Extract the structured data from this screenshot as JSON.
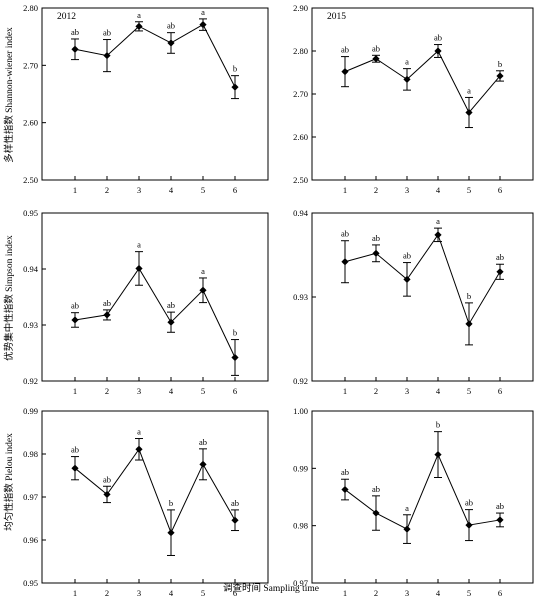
{
  "figure": {
    "x_axis_label": "调查时间 Sampling time",
    "y_axis_labels": [
      "多样性指数 Shannon-wiener index",
      "优势集中性指数 Simpson index",
      "均匀性指数 Pielou index"
    ]
  },
  "chart_data": [
    {
      "type": "line",
      "row": 0,
      "col": 0,
      "year_label": "2012",
      "x": [
        1,
        2,
        3,
        4,
        5,
        6
      ],
      "x_tick_labels": [
        "1",
        "2",
        "3",
        "4",
        "5",
        "6"
      ],
      "values": [
        2.728,
        2.717,
        2.768,
        2.739,
        2.771,
        2.662
      ],
      "errors": [
        0.018,
        0.028,
        0.008,
        0.018,
        0.01,
        0.02
      ],
      "significance": [
        "ab",
        "ab",
        "a",
        "ab",
        "a",
        "b"
      ],
      "ylim": [
        2.5,
        2.8
      ],
      "y_ticks": [
        2.5,
        2.6,
        2.7,
        2.8
      ],
      "y_tick_labels": [
        "2.50",
        "2.60",
        "2.70",
        "2.80"
      ]
    },
    {
      "type": "line",
      "row": 0,
      "col": 1,
      "year_label": "2015",
      "x": [
        1,
        2,
        3,
        4,
        5,
        6
      ],
      "x_tick_labels": [
        "1",
        "2",
        "3",
        "4",
        "5",
        "6"
      ],
      "values": [
        2.752,
        2.782,
        2.734,
        2.8,
        2.657,
        2.742
      ],
      "errors": [
        0.035,
        0.008,
        0.025,
        0.015,
        0.035,
        0.012
      ],
      "significance": [
        "ab",
        "ab",
        "a",
        "ab",
        "a",
        "b"
      ],
      "ylim": [
        2.5,
        2.9
      ],
      "y_ticks": [
        2.5,
        2.6,
        2.7,
        2.8,
        2.9
      ],
      "y_tick_labels": [
        "2.50",
        "2.60",
        "2.70",
        "2.80",
        "2.90"
      ]
    },
    {
      "type": "line",
      "row": 1,
      "col": 0,
      "year_label": "",
      "x": [
        1,
        2,
        3,
        4,
        5,
        6
      ],
      "x_tick_labels": [
        "1",
        "2",
        "3",
        "4",
        "5",
        "6"
      ],
      "values": [
        0.9309,
        0.9318,
        0.9401,
        0.9305,
        0.9362,
        0.9242
      ],
      "errors": [
        0.0013,
        0.0009,
        0.003,
        0.0018,
        0.0022,
        0.0032
      ],
      "significance": [
        "ab",
        "ab",
        "a",
        "ab",
        "a",
        "b"
      ],
      "ylim": [
        0.92,
        0.95
      ],
      "y_ticks": [
        0.92,
        0.93,
        0.94,
        0.95
      ],
      "y_tick_labels": [
        "0.92",
        "0.93",
        "0.94",
        "0.95"
      ]
    },
    {
      "type": "line",
      "row": 1,
      "col": 1,
      "year_label": "",
      "x": [
        1,
        2,
        3,
        4,
        5,
        6
      ],
      "x_tick_labels": [
        "1",
        "2",
        "3",
        "4",
        "5",
        "6"
      ],
      "values": [
        0.9342,
        0.9352,
        0.9321,
        0.9374,
        0.9268,
        0.933
      ],
      "errors": [
        0.0025,
        0.001,
        0.002,
        0.0008,
        0.0025,
        0.0009
      ],
      "significance": [
        "ab",
        "ab",
        "ab",
        "a",
        "b",
        "ab"
      ],
      "ylim": [
        0.92,
        0.94
      ],
      "y_ticks": [
        0.92,
        0.93,
        0.94
      ],
      "y_tick_labels": [
        "0.92",
        "0.93",
        "0.94"
      ]
    },
    {
      "type": "line",
      "row": 2,
      "col": 0,
      "year_label": "",
      "x": [
        1,
        2,
        3,
        4,
        5,
        6
      ],
      "x_tick_labels": [
        "1",
        "2",
        "3",
        "4",
        "5",
        "6"
      ],
      "values": [
        0.9767,
        0.9706,
        0.9811,
        0.9617,
        0.9776,
        0.9646
      ],
      "errors": [
        0.0027,
        0.0019,
        0.0025,
        0.0053,
        0.0036,
        0.0024
      ],
      "significance": [
        "ab",
        "ab",
        "a",
        "b",
        "ab",
        "ab"
      ],
      "ylim": [
        0.95,
        0.99
      ],
      "y_ticks": [
        0.95,
        0.96,
        0.97,
        0.98,
        0.99
      ],
      "y_tick_labels": [
        "0.95",
        "0.96",
        "0.97",
        "0.98",
        "0.99"
      ]
    },
    {
      "type": "line",
      "row": 2,
      "col": 1,
      "year_label": "",
      "x": [
        1,
        2,
        3,
        4,
        5,
        6
      ],
      "x_tick_labels": [
        "1",
        "2",
        "3",
        "4",
        "5",
        "6"
      ],
      "values": [
        0.9863,
        0.9822,
        0.9794,
        0.9924,
        0.9801,
        0.981
      ],
      "errors": [
        0.0018,
        0.003,
        0.0025,
        0.004,
        0.0027,
        0.0012
      ],
      "significance": [
        "ab",
        "ab",
        "a",
        "b",
        "ab",
        "ab"
      ],
      "ylim": [
        0.97,
        1.0
      ],
      "y_ticks": [
        0.97,
        0.98,
        0.99,
        1.0
      ],
      "y_tick_labels": [
        "0.97",
        "0.98",
        "0.99",
        "1.00"
      ]
    }
  ]
}
